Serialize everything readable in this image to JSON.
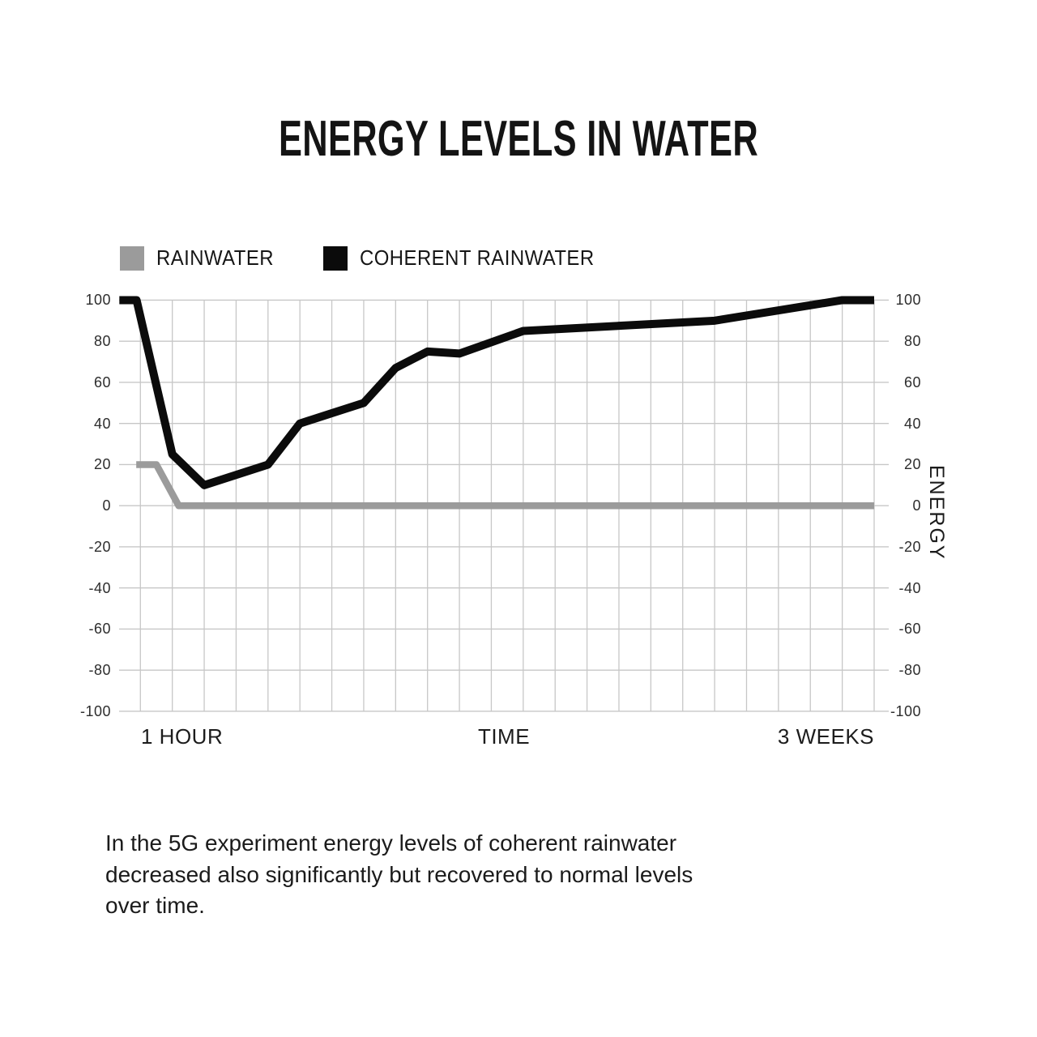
{
  "chart_data": {
    "type": "line",
    "title": "ENERGY LEVELS IN WATER",
    "grid": true,
    "grid_color": "#c7c7c7",
    "legend_position": "top-left",
    "x_axis": {
      "label_left": "1 HOUR",
      "label_center": "TIME",
      "label_right": "3 WEEKS",
      "gridline_columns": 24
    },
    "y_axis": {
      "label": "ENERGY",
      "min": -100,
      "max": 100,
      "tick_step": 20,
      "ticks": [
        100,
        80,
        60,
        40,
        20,
        0,
        -20,
        -40,
        -60,
        -80,
        -100
      ]
    },
    "series": [
      {
        "name": "RAINWATER",
        "color": "#9b9b9b",
        "stroke_width": 8.5,
        "points_col_value": [
          [
            -0.13,
            20
          ],
          [
            0.5,
            20
          ],
          [
            1.2,
            0
          ],
          [
            23,
            0
          ]
        ]
      },
      {
        "name": "COHERENT RAINWATER",
        "color": "#0b0b0b",
        "stroke_width": 10,
        "points_col_value": [
          [
            -0.66,
            100
          ],
          [
            -0.12,
            100
          ],
          [
            1,
            25
          ],
          [
            2,
            10
          ],
          [
            4,
            20
          ],
          [
            5,
            40
          ],
          [
            7,
            50
          ],
          [
            8,
            67
          ],
          [
            9,
            75
          ],
          [
            10,
            74
          ],
          [
            12,
            85
          ],
          [
            18,
            90
          ],
          [
            22,
            100
          ],
          [
            23,
            100
          ]
        ]
      }
    ]
  },
  "caption": {
    "lines": [
      "In the 5G experiment energy levels of coherent rainwater",
      "decreased also significantly but recovered to normal levels",
      "over time."
    ]
  }
}
